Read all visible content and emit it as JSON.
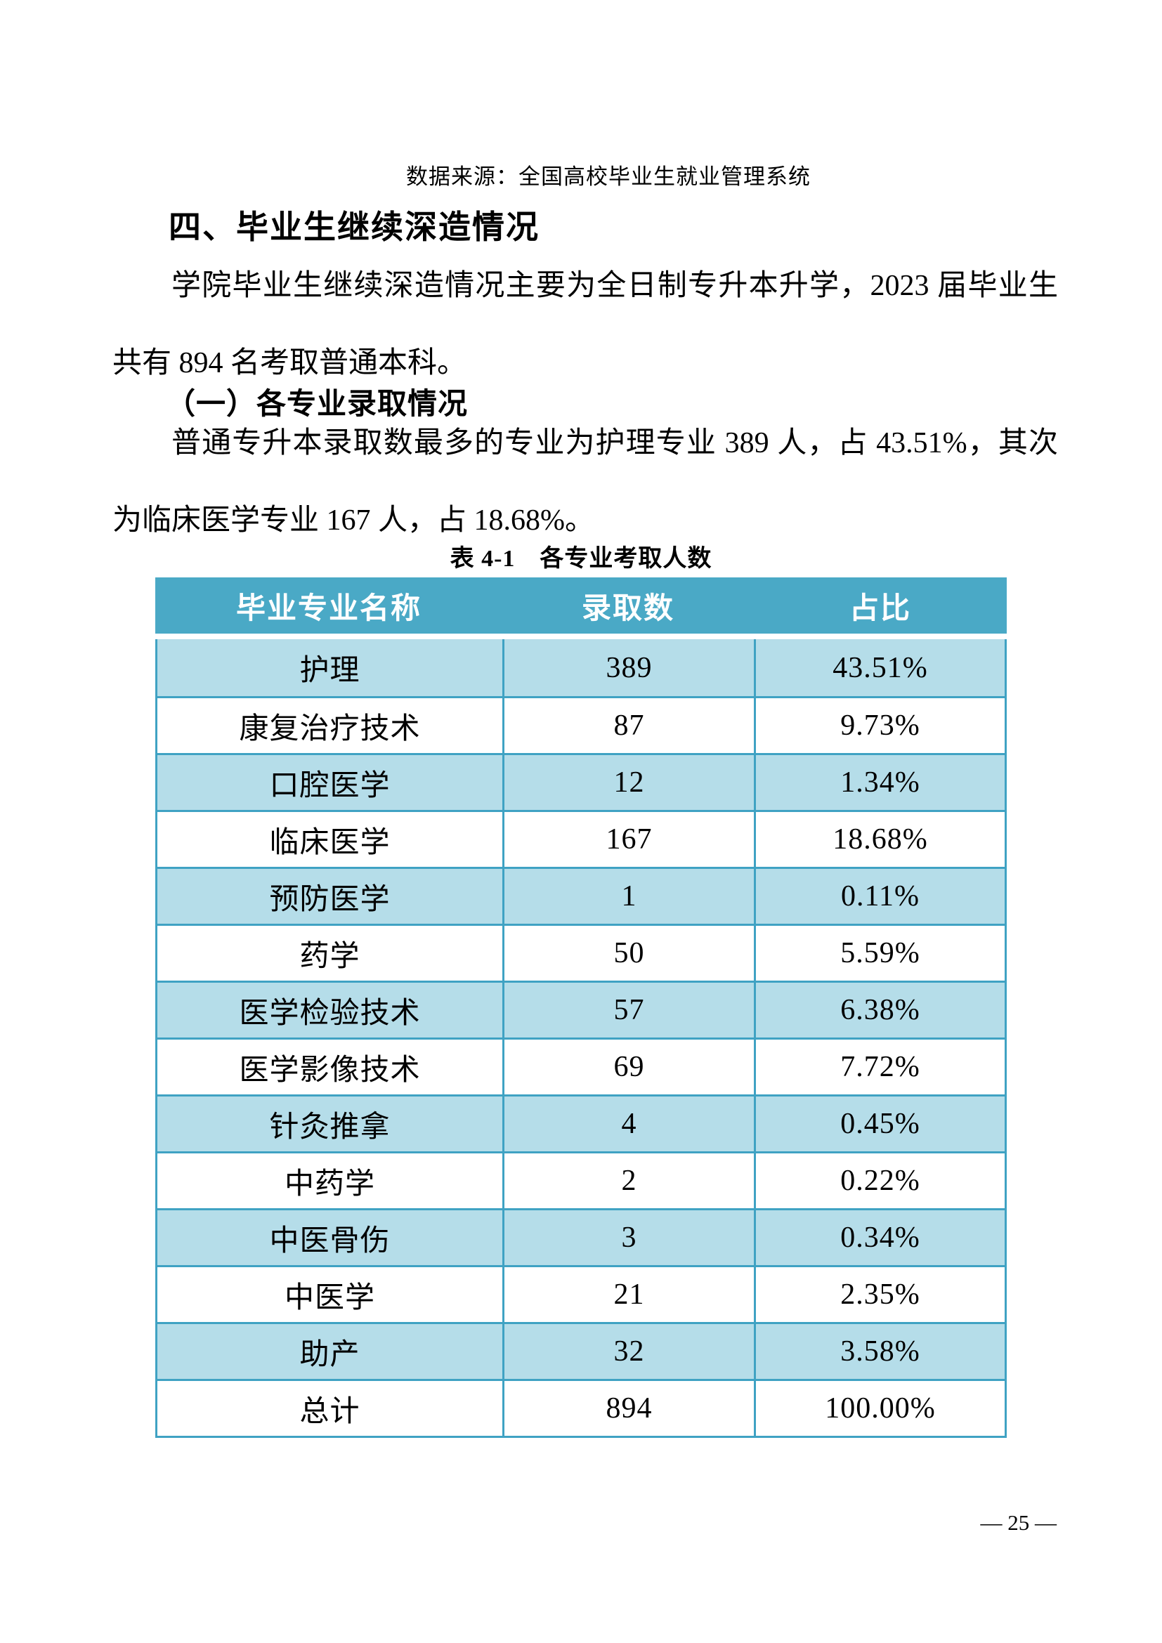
{
  "page": {
    "source_note": "数据来源：全国高校毕业生就业管理系统",
    "page_number": "— 25 —"
  },
  "section": {
    "heading": "四、毕业生继续深造情况",
    "paragraph1": "学院毕业生继续深造情况主要为全日制专升本升学，2023 届毕业生共有 894 名考取普通本科。",
    "subheading": "（一）各专业录取情况",
    "paragraph2": "普通专升本录取数最多的专业为护理专业 389 人，占 43.51%，其次为临床医学专业 167 人，占 18.68%。"
  },
  "table": {
    "caption": "表 4-1　各专业考取人数",
    "columns": [
      "毕业专业名称",
      "录取数",
      "占比"
    ],
    "rows": [
      [
        "护理",
        "389",
        "43.51%"
      ],
      [
        "康复治疗技术",
        "87",
        "9.73%"
      ],
      [
        "口腔医学",
        "12",
        "1.34%"
      ],
      [
        "临床医学",
        "167",
        "18.68%"
      ],
      [
        "预防医学",
        "1",
        "0.11%"
      ],
      [
        "药学",
        "50",
        "5.59%"
      ],
      [
        "医学检验技术",
        "57",
        "6.38%"
      ],
      [
        "医学影像技术",
        "69",
        "7.72%"
      ],
      [
        "针灸推拿",
        "4",
        "0.45%"
      ],
      [
        "中药学",
        "2",
        "0.22%"
      ],
      [
        "中医骨伤",
        "3",
        "0.34%"
      ],
      [
        "中医学",
        "21",
        "2.35%"
      ],
      [
        "助产",
        "32",
        "3.58%"
      ],
      [
        "总计",
        "894",
        "100.00%"
      ]
    ],
    "colors": {
      "header_bg": "#4aa9c6",
      "header_text": "#ffffff",
      "row_alt_bg": "#b5dde9",
      "border": "#3fa2c3"
    }
  }
}
